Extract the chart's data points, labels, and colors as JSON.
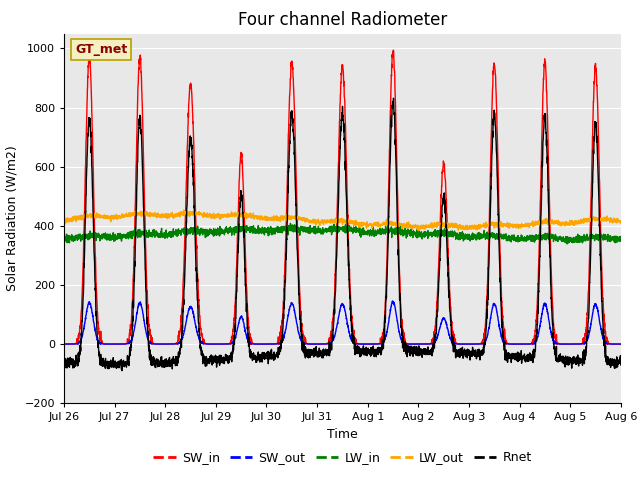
{
  "title": "Four channel Radiometer",
  "xlabel": "Time",
  "ylabel": "Solar Radiation (W/m2)",
  "legend_label": "GT_met",
  "series_labels": [
    "SW_in",
    "SW_out",
    "LW_in",
    "LW_out",
    "Rnet"
  ],
  "series_colors": [
    "red",
    "blue",
    "green",
    "orange",
    "black"
  ],
  "ylim": [
    -200,
    1050
  ],
  "yticks": [
    -200,
    0,
    200,
    400,
    600,
    800,
    1000
  ],
  "day_labels": [
    "Jul 26",
    "Jul 27",
    "Jul 28",
    "Jul 29",
    "Jul 30",
    "Jul 31",
    "Aug 1",
    "Aug 2",
    "Aug 3",
    "Aug 4",
    "Aug 5",
    "Aug 6"
  ],
  "background_color": "#e8e8e8",
  "title_fontsize": 12,
  "axis_label_fontsize": 9,
  "tick_fontsize": 8,
  "legend_box_color": "#f5f0c0",
  "legend_box_edgecolor": "#b8a000",
  "sw_peaks": [
    970,
    970,
    880,
    640,
    950,
    940,
    990,
    610,
    950,
    950,
    940
  ],
  "sw_widths": [
    0.18,
    0.18,
    0.2,
    0.16,
    0.2,
    0.2,
    0.18,
    0.18,
    0.18,
    0.18,
    0.18
  ],
  "lw_in_base": 365,
  "lw_out_base": 400,
  "rnet_night": -60
}
